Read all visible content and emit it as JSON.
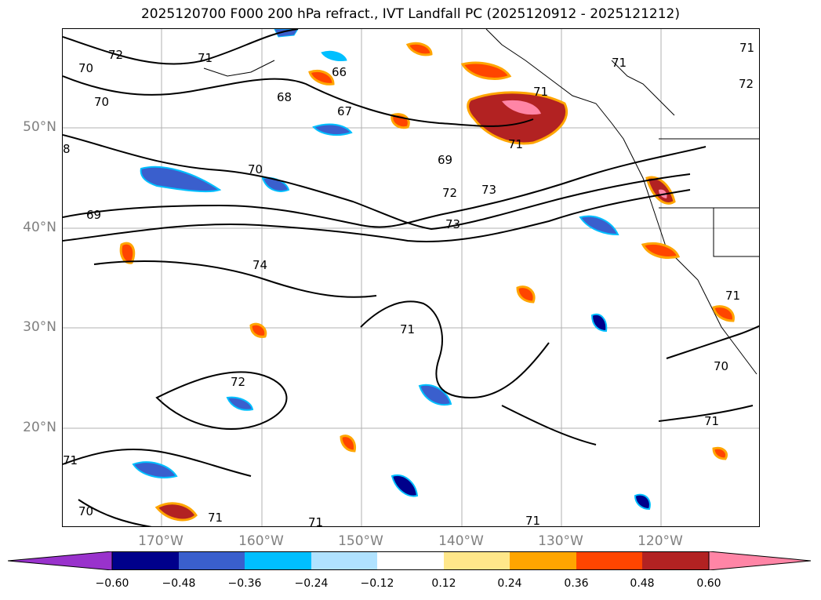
{
  "title": "2025120700 F000 200 hPa refract., IVT Landfall PC (2025120912 - 2025121212)",
  "lat_ticks": [
    "50°N",
    "40°N",
    "30°N",
    "20°N"
  ],
  "lon_ticks": [
    "170°W",
    "160°W",
    "150°W",
    "140°W",
    "130°W",
    "120°W"
  ],
  "colorbar": {
    "colors": [
      "#9932CC",
      "#00008B",
      "#3A5FCD",
      "#00BFFF",
      "#B0E2FF",
      "#FFFFFF",
      "#FFE78A",
      "#FFA500",
      "#FF4500",
      "#B22222",
      "#FF85A6"
    ],
    "tick_labels": [
      "−0.60",
      "−0.48",
      "−0.36",
      "−0.24",
      "−0.12",
      "0.12",
      "0.24",
      "0.36",
      "0.48",
      "0.60"
    ]
  },
  "contour_labels": [
    "72",
    "71",
    "70",
    "66",
    "71",
    "71",
    "72",
    "70",
    "68",
    "67",
    "71",
    "8",
    "69",
    "70",
    "71",
    "69",
    "72",
    "73",
    "73",
    "74",
    "71",
    "71",
    "72",
    "70",
    "71",
    "70",
    "71",
    "71",
    "71",
    "71"
  ],
  "map_features": {
    "land_color": "#ffffff",
    "grid_color": "#b0b0b0",
    "coastline_color": "#000000"
  }
}
